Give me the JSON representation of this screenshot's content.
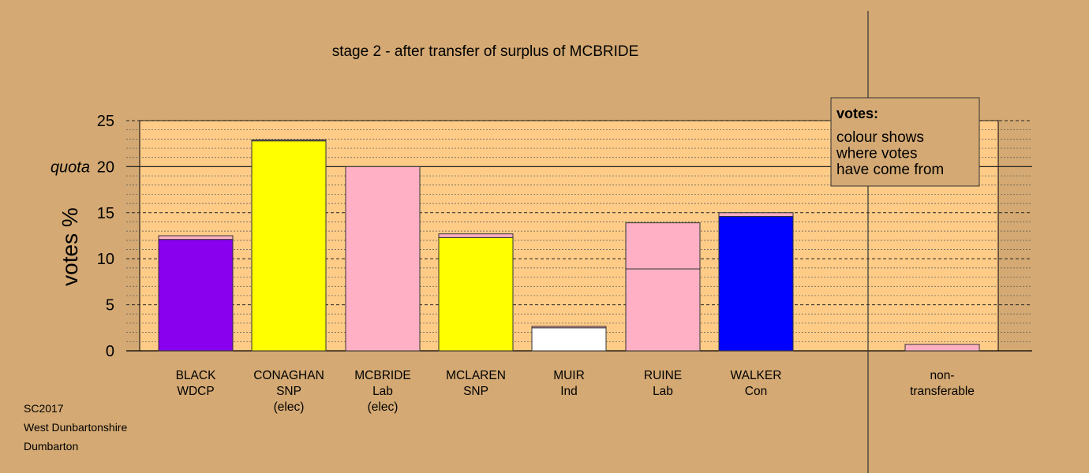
{
  "chart_data": {
    "type": "bar",
    "title": "stage 2 - after transfer of surplus of MCBRIDE",
    "ylabel": "votes %",
    "ylim": [
      0,
      25
    ],
    "yticks": [
      0,
      5,
      10,
      15,
      20,
      25
    ],
    "quota": {
      "label": "quota",
      "value": 20
    },
    "grid": true,
    "legend": {
      "title": "votes:",
      "lines": [
        "colour shows",
        "where votes",
        "have come from"
      ]
    },
    "categories": [
      {
        "lines": [
          "BLACK",
          "WDCP"
        ]
      },
      {
        "lines": [
          "CONAGHAN",
          "SNP",
          "(elec)"
        ]
      },
      {
        "lines": [
          "MCBRIDE",
          "Lab",
          "(elec)"
        ]
      },
      {
        "lines": [
          "MCLAREN",
          "SNP"
        ]
      },
      {
        "lines": [
          "MUIR",
          "Ind"
        ]
      },
      {
        "lines": [
          "RUINE",
          "Lab"
        ]
      },
      {
        "lines": [
          "WALKER",
          "Con"
        ]
      },
      {
        "lines": [
          "non-",
          "transferable"
        ]
      }
    ],
    "bars": [
      {
        "segments": [
          {
            "value": 12.1,
            "color": "#8800ee"
          },
          {
            "value": 0.4,
            "color": "#ffb0c4"
          }
        ]
      },
      {
        "segments": [
          {
            "value": 22.8,
            "color": "#ffff00"
          },
          {
            "value": 0.1,
            "color": "#ffb0c4"
          }
        ]
      },
      {
        "segments": [
          {
            "value": 20.0,
            "color": "#ffb0c4"
          }
        ]
      },
      {
        "segments": [
          {
            "value": 12.3,
            "color": "#ffff00"
          },
          {
            "value": 0.4,
            "color": "#ffb0c4"
          }
        ]
      },
      {
        "segments": [
          {
            "value": 2.5,
            "color": "#ffffff"
          },
          {
            "value": 0.15,
            "color": "#ffb0c4"
          }
        ]
      },
      {
        "segments": [
          {
            "value": 8.9,
            "color": "#ffb0c4"
          },
          {
            "value": 5.0,
            "color": "#ffb0c4"
          }
        ]
      },
      {
        "segments": [
          {
            "value": 14.6,
            "color": "#0000ff"
          },
          {
            "value": 0.4,
            "color": "#ffb0c4"
          }
        ]
      },
      {
        "segments": [
          {
            "value": 0.7,
            "color": "#ffb0c4"
          }
        ]
      }
    ],
    "colors": {
      "background": "#d4a973",
      "plot_area": "#ffcc88"
    }
  },
  "footer": {
    "line1": "SC2017",
    "line2": "West Dunbartonshire",
    "line3": "Dumbarton"
  }
}
